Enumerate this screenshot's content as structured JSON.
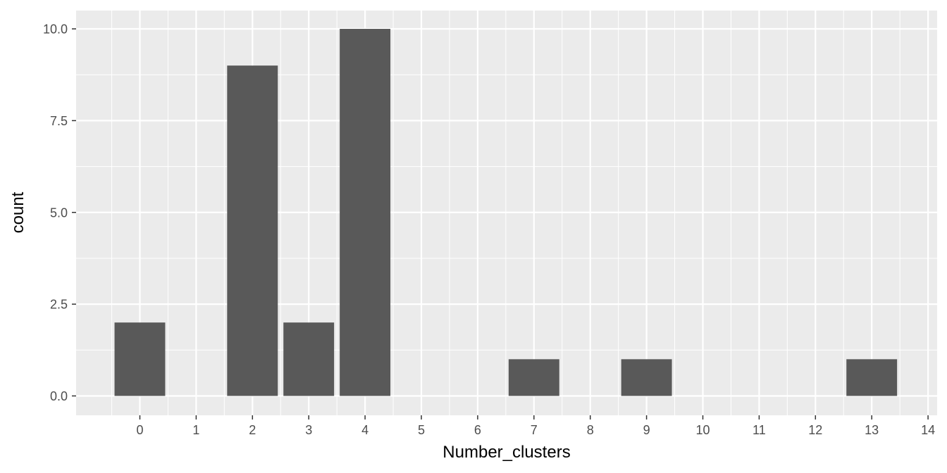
{
  "chart_data": {
    "type": "bar",
    "title": "",
    "xlabel": "Number_clusters",
    "ylabel": "count",
    "x": [
      0,
      2,
      3,
      4,
      7,
      9,
      13
    ],
    "values": [
      2,
      9,
      2,
      10,
      1,
      1,
      1
    ],
    "xlim": [
      -1,
      14
    ],
    "ylim": [
      0,
      10
    ],
    "x_ticks": [
      0,
      1,
      2,
      3,
      4,
      5,
      6,
      7,
      8,
      9,
      10,
      11,
      12,
      13,
      14
    ],
    "y_ticks": [
      0.0,
      2.5,
      5.0,
      7.5,
      10.0
    ],
    "y_tick_labels": [
      "0.0",
      "2.5",
      "5.0",
      "7.5",
      "10.0"
    ],
    "grid": true,
    "legend": "none",
    "colors": {
      "panel_background": "#ebebeb",
      "grid": "#ffffff",
      "bar_fill": "#595959",
      "tick_text": "#4d4d4d",
      "tick_mark": "#333333"
    }
  }
}
